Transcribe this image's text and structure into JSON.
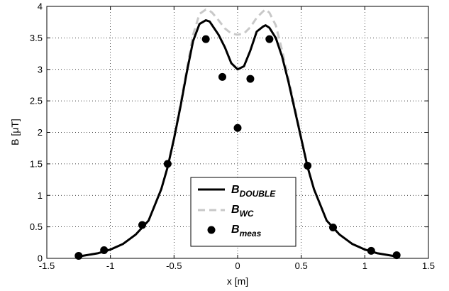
{
  "chart_data": {
    "type": "line",
    "title": "",
    "xlabel": "x [m]",
    "ylabel": "B [μT]",
    "xlim": [
      -1.5,
      1.5
    ],
    "ylim": [
      0,
      4
    ],
    "xticks": [
      "-1.5",
      "-1",
      "-0.5",
      "0",
      "0.5",
      "1",
      "1.5"
    ],
    "yticks": [
      "0",
      "0.5",
      "1",
      "1.5",
      "2",
      "2.5",
      "3",
      "3.5",
      "4"
    ],
    "grid": "dotted",
    "legend_position": "lower-center",
    "series": [
      {
        "name": "B_DOUBLE",
        "legend_main": "B",
        "legend_sub": "DOUBLE",
        "style": "solid",
        "color": "#000000",
        "x": [
          -1.25,
          -1.1,
          -1.0,
          -0.9,
          -0.8,
          -0.7,
          -0.6,
          -0.55,
          -0.5,
          -0.45,
          -0.4,
          -0.35,
          -0.3,
          -0.25,
          -0.22,
          -0.2,
          -0.15,
          -0.1,
          -0.05,
          0.0,
          0.05,
          0.1,
          0.15,
          0.2,
          0.22,
          0.25,
          0.3,
          0.35,
          0.4,
          0.45,
          0.5,
          0.55,
          0.6,
          0.7,
          0.8,
          0.9,
          1.0,
          1.1,
          1.25
        ],
        "y": [
          0.03,
          0.08,
          0.14,
          0.23,
          0.38,
          0.6,
          1.1,
          1.45,
          1.9,
          2.4,
          2.95,
          3.45,
          3.72,
          3.78,
          3.76,
          3.7,
          3.55,
          3.35,
          3.1,
          3.0,
          3.05,
          3.3,
          3.6,
          3.68,
          3.7,
          3.66,
          3.5,
          3.2,
          2.8,
          2.35,
          1.9,
          1.45,
          1.1,
          0.6,
          0.38,
          0.23,
          0.14,
          0.08,
          0.03
        ]
      },
      {
        "name": "B_WC",
        "legend_main": "B",
        "legend_sub": "WC",
        "style": "dashed",
        "color": "#c8c8c8",
        "x": [
          -1.25,
          -1.1,
          -1.0,
          -0.9,
          -0.8,
          -0.7,
          -0.6,
          -0.55,
          -0.5,
          -0.45,
          -0.4,
          -0.35,
          -0.3,
          -0.25,
          -0.22,
          -0.2,
          -0.15,
          -0.1,
          -0.05,
          0.0,
          0.05,
          0.1,
          0.15,
          0.2,
          0.22,
          0.25,
          0.3,
          0.35,
          0.4,
          0.45,
          0.5,
          0.55,
          0.6,
          0.7,
          0.8,
          0.9,
          1.0,
          1.1,
          1.25
        ],
        "y": [
          0.03,
          0.08,
          0.14,
          0.23,
          0.38,
          0.6,
          1.1,
          1.45,
          1.92,
          2.45,
          3.0,
          3.55,
          3.88,
          3.95,
          3.93,
          3.9,
          3.78,
          3.65,
          3.57,
          3.55,
          3.57,
          3.67,
          3.82,
          3.92,
          3.95,
          3.9,
          3.7,
          3.3,
          2.85,
          2.4,
          1.92,
          1.45,
          1.1,
          0.6,
          0.38,
          0.23,
          0.14,
          0.08,
          0.03
        ]
      },
      {
        "name": "B_meas",
        "legend_main": "B",
        "legend_sub": "meas",
        "style": "markers",
        "color": "#000000",
        "x": [
          -1.25,
          -1.05,
          -0.75,
          -0.55,
          -0.25,
          -0.12,
          0.0,
          0.1,
          0.25,
          0.55,
          0.75,
          1.05,
          1.25
        ],
        "y": [
          0.04,
          0.13,
          0.53,
          1.5,
          3.48,
          2.88,
          2.07,
          2.85,
          3.48,
          1.47,
          0.49,
          0.12,
          0.05
        ]
      }
    ]
  }
}
